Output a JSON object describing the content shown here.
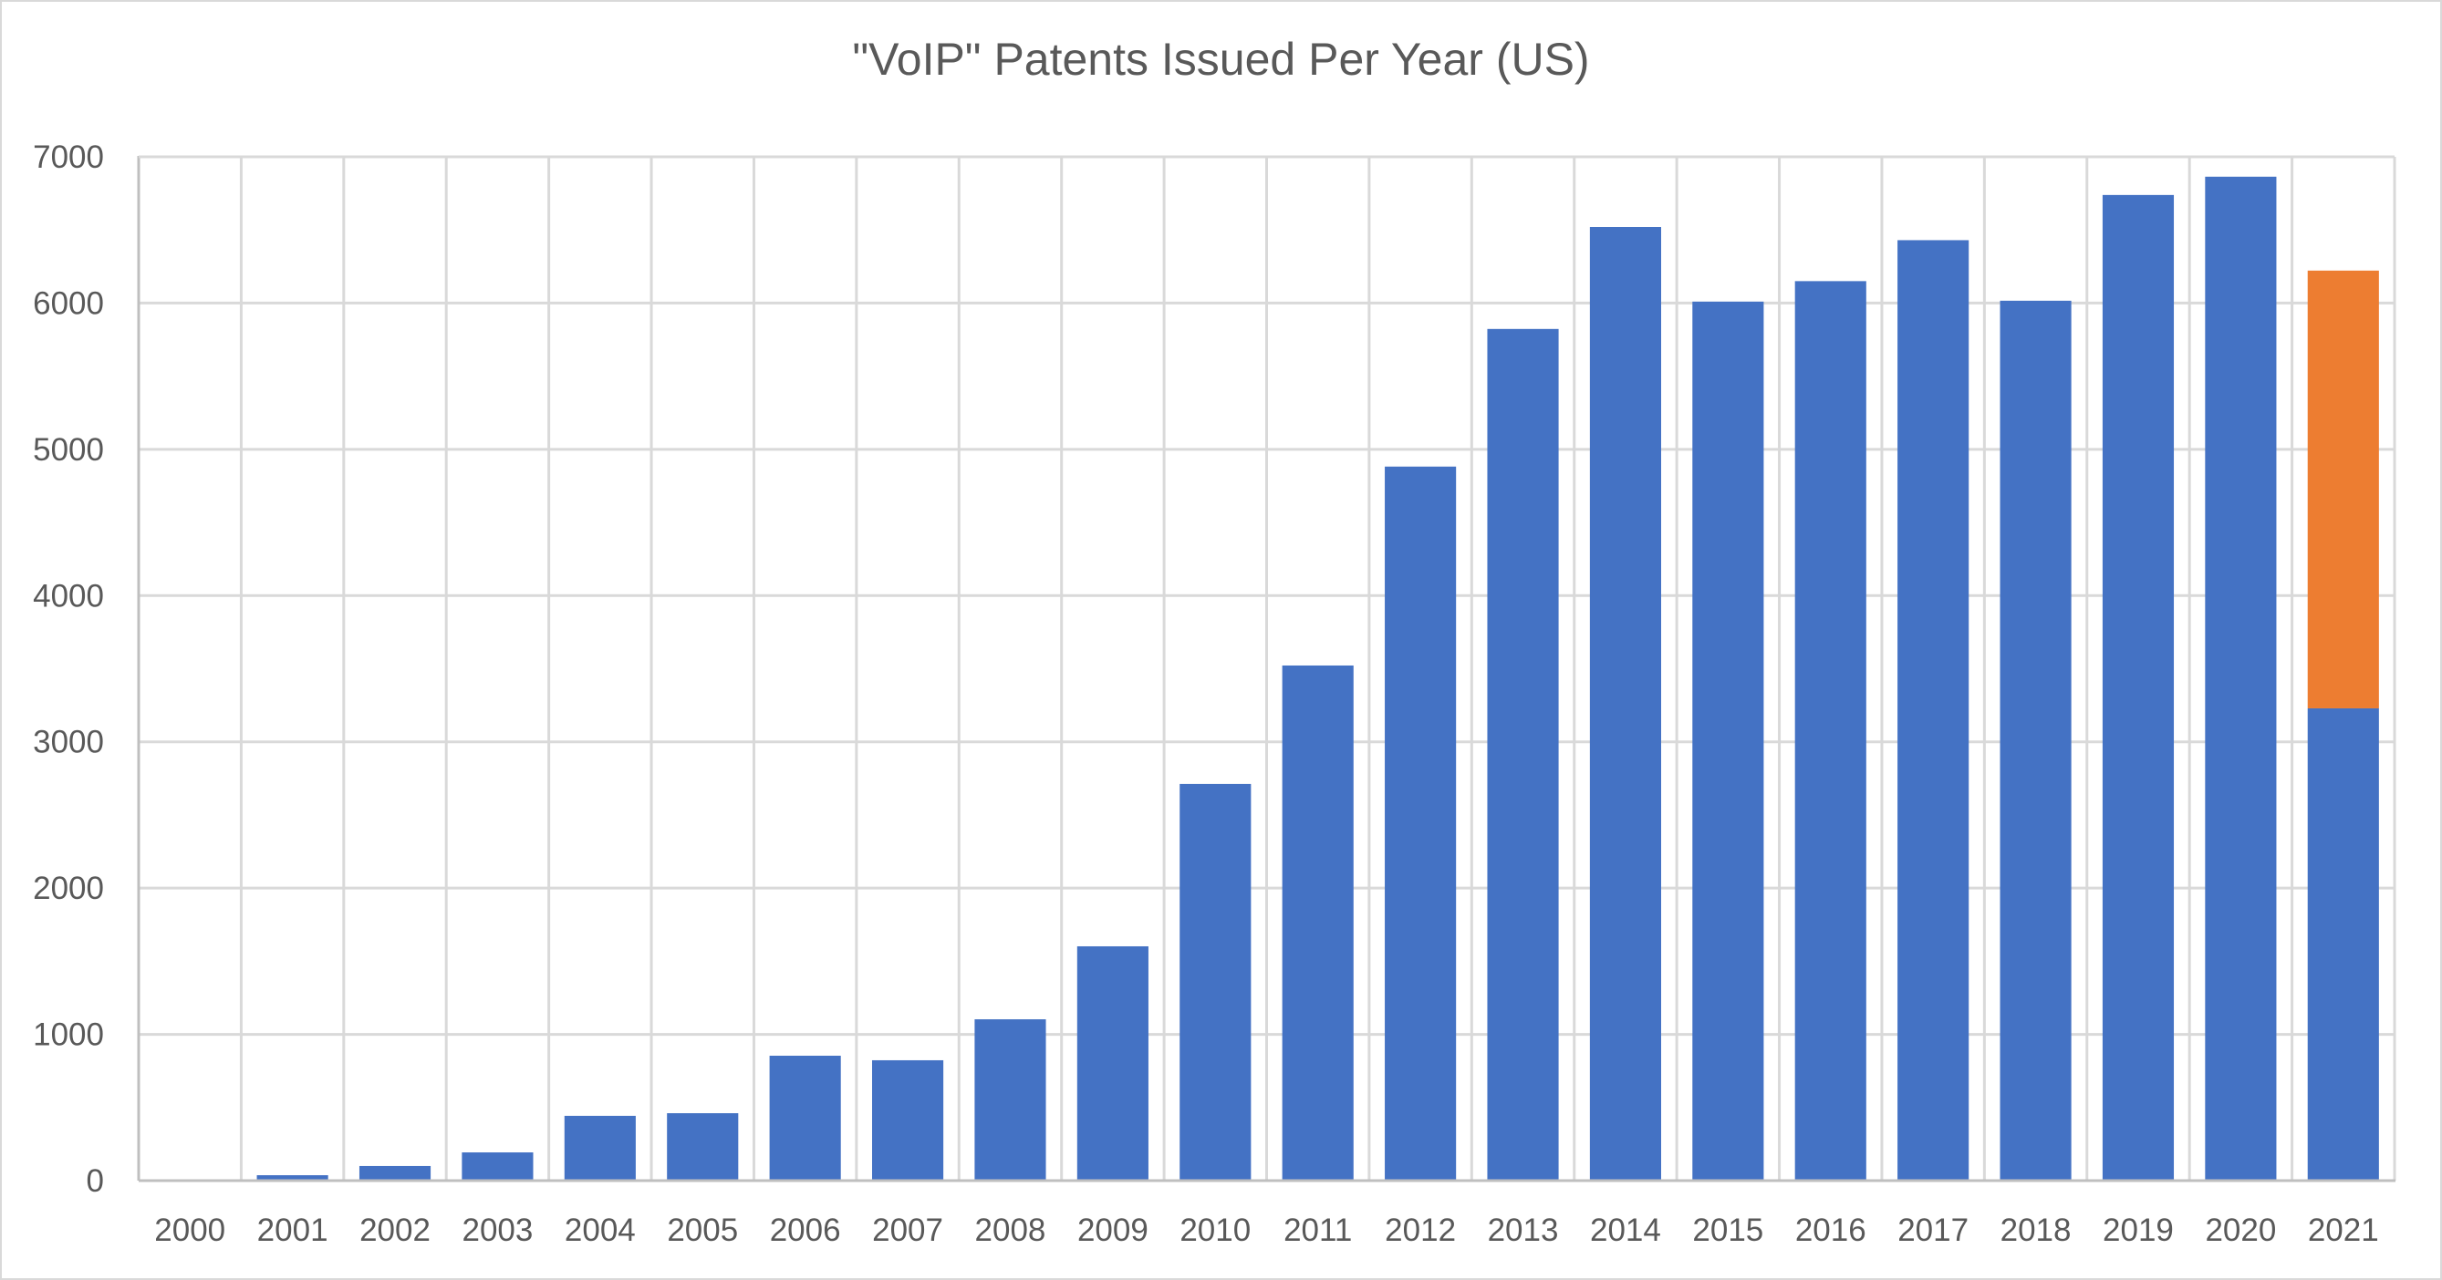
{
  "chart_data": {
    "type": "bar",
    "stacked": true,
    "title": "\"VoIP\" Patents Issued Per Year (US)",
    "xlabel": "",
    "ylabel": "",
    "ylim": [
      0,
      7000
    ],
    "yticks": [
      0,
      1000,
      2000,
      3000,
      4000,
      5000,
      6000,
      7000
    ],
    "grid": true,
    "legend": "none",
    "categories": [
      "2000",
      "2001",
      "2002",
      "2003",
      "2004",
      "2005",
      "2006",
      "2007",
      "2008",
      "2009",
      "2010",
      "2011",
      "2012",
      "2013",
      "2014",
      "2015",
      "2016",
      "2017",
      "2018",
      "2019",
      "2020",
      "2021"
    ],
    "series": [
      {
        "name": "Issued",
        "color": "#4472C4",
        "values": [
          0,
          37,
          100,
          193,
          443,
          461,
          854,
          823,
          1103,
          1602,
          2712,
          3522,
          4882,
          5823,
          6520,
          6010,
          6150,
          6430,
          6016,
          6739,
          6864,
          3229
        ]
      },
      {
        "name": "Projected",
        "color": "#ED7D31",
        "values": [
          0,
          0,
          0,
          0,
          0,
          0,
          0,
          0,
          0,
          0,
          0,
          0,
          0,
          0,
          0,
          0,
          0,
          0,
          0,
          0,
          0,
          2993
        ]
      }
    ]
  },
  "colors": {
    "gridline": "#D9D9D9",
    "axis": "#BFBFBF",
    "text": "#595959"
  }
}
